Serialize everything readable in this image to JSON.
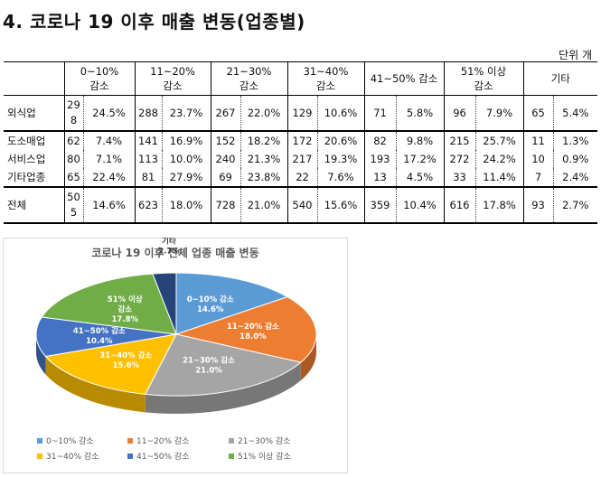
{
  "heading": "4. 코로나 19 이후 매출 변동(업종별)",
  "unit": "단위 개",
  "table": {
    "headers": [
      {
        "line1": "0~10%",
        "line2": "감소"
      },
      {
        "line1": "11~20%",
        "line2": "감소"
      },
      {
        "line1": "21~30%",
        "line2": "감소"
      },
      {
        "line1": "31~40%",
        "line2": "감소"
      },
      {
        "line1": "41~50% 감소",
        "line2": ""
      },
      {
        "line1": "51% 이상",
        "line2": "감소"
      },
      {
        "line1": "기타",
        "line2": ""
      }
    ],
    "rows": [
      {
        "label": "외식업",
        "tall": true,
        "cells": [
          [
            "29\n8",
            "24.5%"
          ],
          [
            "288",
            "23.7%"
          ],
          [
            "267",
            "22.0%"
          ],
          [
            "129",
            "10.6%"
          ],
          [
            "71",
            "5.8%"
          ],
          [
            "96",
            "7.9%"
          ],
          [
            "65",
            "5.4%"
          ]
        ]
      },
      {
        "label": "도소매업",
        "tall": false,
        "cells": [
          [
            "62",
            "7.4%"
          ],
          [
            "141",
            "16.9%"
          ],
          [
            "152",
            "18.2%"
          ],
          [
            "172",
            "20.6%"
          ],
          [
            "82",
            "9.8%"
          ],
          [
            "215",
            "25.7%"
          ],
          [
            "11",
            "1.3%"
          ]
        ]
      },
      {
        "label": "서비스업",
        "tall": false,
        "cells": [
          [
            "80",
            "7.1%"
          ],
          [
            "113",
            "10.0%"
          ],
          [
            "240",
            "21.3%"
          ],
          [
            "217",
            "19.3%"
          ],
          [
            "193",
            "17.2%"
          ],
          [
            "272",
            "24.2%"
          ],
          [
            "10",
            "0.9%"
          ]
        ]
      },
      {
        "label": "기타업종",
        "tall": false,
        "cells": [
          [
            "65",
            "22.4%"
          ],
          [
            "81",
            "27.9%"
          ],
          [
            "69",
            "23.8%"
          ],
          [
            "22",
            "7.6%"
          ],
          [
            "13",
            "4.5%"
          ],
          [
            "33",
            "11.4%"
          ],
          [
            "7",
            "2.4%"
          ]
        ]
      },
      {
        "label": "전체",
        "tall": true,
        "cells": [
          [
            "50\n5",
            "14.6%"
          ],
          [
            "623",
            "18.0%"
          ],
          [
            "728",
            "21.0%"
          ],
          [
            "540",
            "15.6%"
          ],
          [
            "359",
            "10.4%"
          ],
          [
            "616",
            "17.8%"
          ],
          [
            "93",
            "2.7%"
          ]
        ]
      }
    ]
  },
  "chart_data": {
    "type": "pie",
    "title": "코로나 19 이후 전체 업종 매출 변동",
    "legend_position": "bottom",
    "categories": [
      "0~10% 감소",
      "11~20% 감소",
      "21~30% 감소",
      "31~40% 감소",
      "41~50% 감소",
      "51% 이상 감소",
      "기타"
    ],
    "values": [
      14.6,
      18.0,
      21.0,
      15.6,
      10.4,
      17.8,
      2.7
    ],
    "labels": [
      "0~10% 감소\n14.6%",
      "11~20% 감소\n18.0%",
      "21~30% 감소\n21.0%",
      "31~40% 감소\n15.6%",
      "41~50% 감소\n10.4%",
      "51% 이상\n감소\n17.8%",
      "기타\n2.7%"
    ],
    "colors": [
      "#5b9bd5",
      "#ed7d31",
      "#a5a5a5",
      "#ffc000",
      "#4472c4",
      "#70ad47",
      "#264478"
    ]
  }
}
